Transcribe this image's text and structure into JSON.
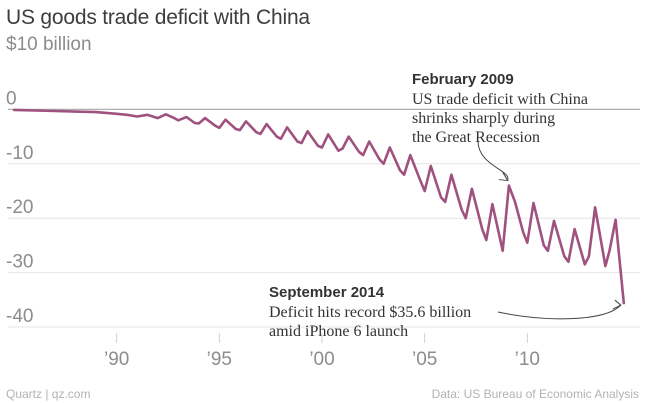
{
  "chart_data": {
    "type": "line",
    "title": "US goods trade deficit with China",
    "y_unit_label": "$10 billion",
    "ylim": [
      -40,
      10
    ],
    "yticks": [
      {
        "value": 10,
        "label": "$10 billion"
      },
      {
        "value": 0,
        "label": "0"
      },
      {
        "value": -10,
        "label": "-10"
      },
      {
        "value": -20,
        "label": "-20"
      },
      {
        "value": -30,
        "label": "-30"
      },
      {
        "value": -40,
        "label": "-40"
      }
    ],
    "xlim": [
      1985,
      2015
    ],
    "xticks": [
      {
        "value": 1990,
        "label": "’90"
      },
      {
        "value": 1995,
        "label": "’95"
      },
      {
        "value": 2000,
        "label": "’00"
      },
      {
        "value": 2005,
        "label": "’05"
      },
      {
        "value": 2010,
        "label": "’10"
      }
    ],
    "grid": "horizontal",
    "line_color": "#a0527f",
    "zero_line_color": "#b0b0b0",
    "series": [
      {
        "values": [
          {
            "x": 1985.0,
            "y": -0.1
          },
          {
            "x": 1986.0,
            "y": -0.2
          },
          {
            "x": 1987.0,
            "y": -0.3
          },
          {
            "x": 1988.0,
            "y": -0.4
          },
          {
            "x": 1989.0,
            "y": -0.5
          },
          {
            "x": 1990.0,
            "y": -0.8
          },
          {
            "x": 1990.5,
            "y": -1.0
          },
          {
            "x": 1991.0,
            "y": -1.3
          },
          {
            "x": 1991.5,
            "y": -1.0
          },
          {
            "x": 1992.0,
            "y": -1.6
          },
          {
            "x": 1992.4,
            "y": -0.9
          },
          {
            "x": 1992.8,
            "y": -1.6
          },
          {
            "x": 1993.0,
            "y": -2.0
          },
          {
            "x": 1993.4,
            "y": -1.4
          },
          {
            "x": 1993.8,
            "y": -2.5
          },
          {
            "x": 1994.0,
            "y": -2.6
          },
          {
            "x": 1994.3,
            "y": -1.6
          },
          {
            "x": 1994.8,
            "y": -3.0
          },
          {
            "x": 1995.0,
            "y": -3.4
          },
          {
            "x": 1995.3,
            "y": -1.9
          },
          {
            "x": 1995.8,
            "y": -3.6
          },
          {
            "x": 1996.0,
            "y": -3.8
          },
          {
            "x": 1996.3,
            "y": -2.2
          },
          {
            "x": 1996.8,
            "y": -4.2
          },
          {
            "x": 1997.0,
            "y": -4.5
          },
          {
            "x": 1997.3,
            "y": -2.7
          },
          {
            "x": 1997.8,
            "y": -5.0
          },
          {
            "x": 1998.0,
            "y": -5.4
          },
          {
            "x": 1998.3,
            "y": -3.3
          },
          {
            "x": 1998.8,
            "y": -5.9
          },
          {
            "x": 1999.0,
            "y": -6.2
          },
          {
            "x": 1999.3,
            "y": -4.0
          },
          {
            "x": 1999.8,
            "y": -6.7
          },
          {
            "x": 2000.0,
            "y": -7.0
          },
          {
            "x": 2000.3,
            "y": -4.6
          },
          {
            "x": 2000.8,
            "y": -7.6
          },
          {
            "x": 2001.0,
            "y": -7.2
          },
          {
            "x": 2001.3,
            "y": -5.0
          },
          {
            "x": 2001.8,
            "y": -7.8
          },
          {
            "x": 2002.0,
            "y": -8.4
          },
          {
            "x": 2002.3,
            "y": -5.9
          },
          {
            "x": 2002.8,
            "y": -9.2
          },
          {
            "x": 2003.0,
            "y": -10.0
          },
          {
            "x": 2003.3,
            "y": -7.0
          },
          {
            "x": 2003.8,
            "y": -11.2
          },
          {
            "x": 2004.0,
            "y": -12.0
          },
          {
            "x": 2004.3,
            "y": -8.4
          },
          {
            "x": 2004.8,
            "y": -13.2
          },
          {
            "x": 2005.0,
            "y": -15.0
          },
          {
            "x": 2005.3,
            "y": -10.4
          },
          {
            "x": 2005.8,
            "y": -16.2
          },
          {
            "x": 2006.0,
            "y": -17.0
          },
          {
            "x": 2006.3,
            "y": -12.0
          },
          {
            "x": 2006.8,
            "y": -18.4
          },
          {
            "x": 2007.0,
            "y": -20.0
          },
          {
            "x": 2007.3,
            "y": -14.6
          },
          {
            "x": 2007.8,
            "y": -22.0
          },
          {
            "x": 2008.0,
            "y": -24.0
          },
          {
            "x": 2008.3,
            "y": -17.4
          },
          {
            "x": 2008.8,
            "y": -26.0
          },
          {
            "x": 2009.1,
            "y": -14.0
          },
          {
            "x": 2009.4,
            "y": -17.0
          },
          {
            "x": 2009.8,
            "y": -22.6
          },
          {
            "x": 2010.0,
            "y": -24.5
          },
          {
            "x": 2010.3,
            "y": -17.2
          },
          {
            "x": 2010.8,
            "y": -25.0
          },
          {
            "x": 2011.0,
            "y": -26.0
          },
          {
            "x": 2011.3,
            "y": -20.5
          },
          {
            "x": 2011.8,
            "y": -27.0
          },
          {
            "x": 2012.0,
            "y": -28.0
          },
          {
            "x": 2012.3,
            "y": -22.0
          },
          {
            "x": 2012.8,
            "y": -28.5
          },
          {
            "x": 2013.0,
            "y": -27.0
          },
          {
            "x": 2013.3,
            "y": -18.0
          },
          {
            "x": 2013.8,
            "y": -28.8
          },
          {
            "x": 2014.0,
            "y": -26.0
          },
          {
            "x": 2014.3,
            "y": -20.3
          },
          {
            "x": 2014.7,
            "y": -35.6
          }
        ]
      }
    ],
    "annotations": [
      {
        "id": "feb2009",
        "heading": "February 2009",
        "lines": [
          "US trade deficit with China",
          "shrinks sharply during",
          "the Great Recession"
        ],
        "x": 2009.1,
        "y": -14.0
      },
      {
        "id": "sep2014",
        "heading": "September 2014",
        "lines": [
          "Deficit hits record $35.6 billion",
          "amid iPhone 6 launch"
        ],
        "x": 2014.7,
        "y": -35.6
      }
    ]
  },
  "footer": {
    "source_left": "Quartz | qz.com",
    "source_right": "Data: US Bureau of Economic Analysis"
  }
}
